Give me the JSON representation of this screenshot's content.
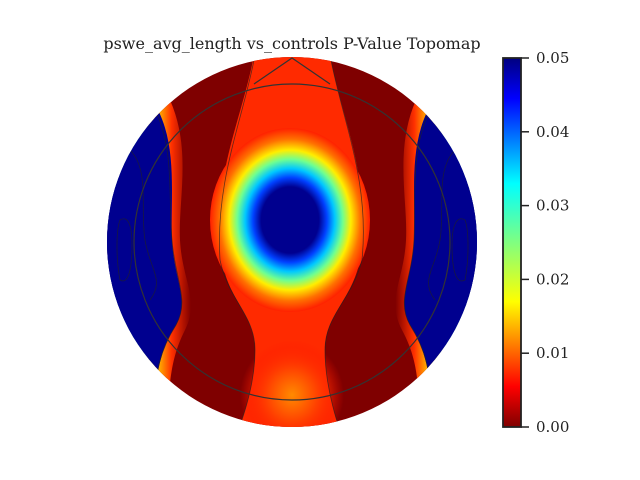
{
  "chart_data": {
    "type": "heatmap",
    "title": "pswe_avg_length vs_controls P-Value Topomap",
    "colormap": "jet_reversed",
    "colorbar": {
      "vmin": 0.0,
      "vmax": 0.05,
      "ticks": [
        "0.00",
        "0.01",
        "0.02",
        "0.03",
        "0.04",
        "0.05"
      ],
      "tick_values": [
        0.0,
        0.01,
        0.02,
        0.03,
        0.04,
        0.05
      ]
    },
    "regions": [
      {
        "name": "central",
        "p_value": 0.05
      },
      {
        "name": "outer-left",
        "p_value": 0.05
      },
      {
        "name": "outer-right",
        "p_value": 0.05
      },
      {
        "name": "mid-left-band",
        "p_value": 0.0
      },
      {
        "name": "mid-right-band",
        "p_value": 0.0
      }
    ],
    "colors": {
      "low": "#7f0000",
      "high": "#00007f",
      "outline": "#333333"
    }
  }
}
